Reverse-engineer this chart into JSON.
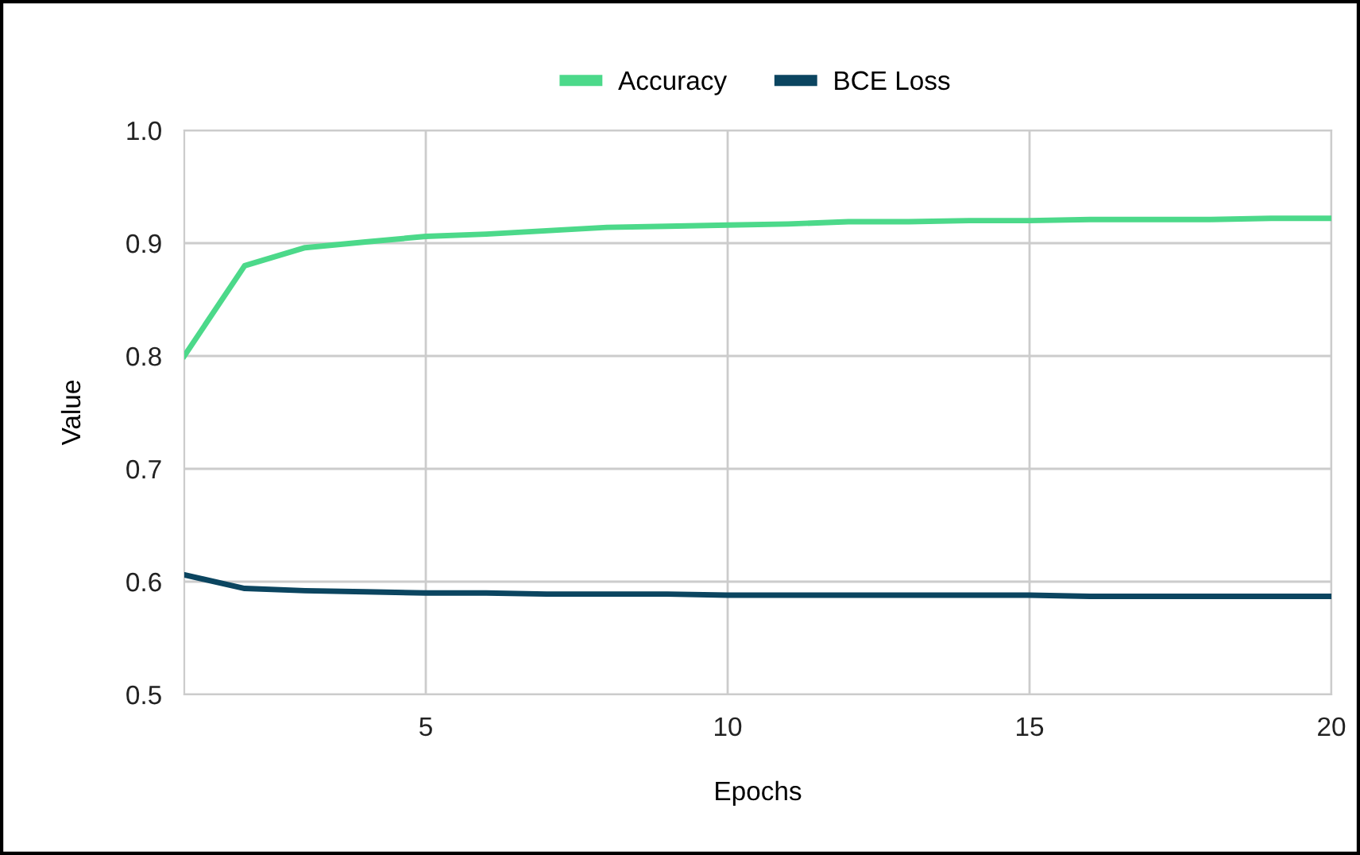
{
  "chart_data": {
    "type": "line",
    "xlabel": "Epochs",
    "ylabel": "Value",
    "x": [
      1,
      2,
      3,
      4,
      5,
      6,
      7,
      8,
      9,
      10,
      11,
      12,
      13,
      14,
      15,
      16,
      17,
      18,
      19,
      20
    ],
    "series": [
      {
        "name": "Accuracy",
        "color": "#4cd98a",
        "values": [
          0.8,
          0.88,
          0.896,
          0.901,
          0.906,
          0.908,
          0.911,
          0.914,
          0.915,
          0.916,
          0.917,
          0.919,
          0.919,
          0.92,
          0.92,
          0.921,
          0.921,
          0.921,
          0.922,
          0.922
        ]
      },
      {
        "name": "BCE Loss",
        "color": "#0b4560",
        "values": [
          0.606,
          0.594,
          0.592,
          0.591,
          0.59,
          0.59,
          0.589,
          0.589,
          0.589,
          0.588,
          0.588,
          0.588,
          0.588,
          0.588,
          0.588,
          0.587,
          0.587,
          0.587,
          0.587,
          0.587
        ]
      }
    ],
    "xlim": [
      1,
      20
    ],
    "xticks": [
      5,
      10,
      15,
      20
    ],
    "ylim": [
      0.5,
      1.0
    ],
    "yticks": [
      {
        "value": 0.5,
        "label": "0.5"
      },
      {
        "value": 0.6,
        "label": "0.6"
      },
      {
        "value": 0.7,
        "label": "0.7"
      },
      {
        "value": 0.8,
        "label": "0.8"
      },
      {
        "value": 0.9,
        "label": "0.9"
      },
      {
        "value": 1.0,
        "label": "1.0"
      }
    ],
    "grid": true,
    "legend": "top",
    "marker": "none",
    "line_style": "solid"
  }
}
